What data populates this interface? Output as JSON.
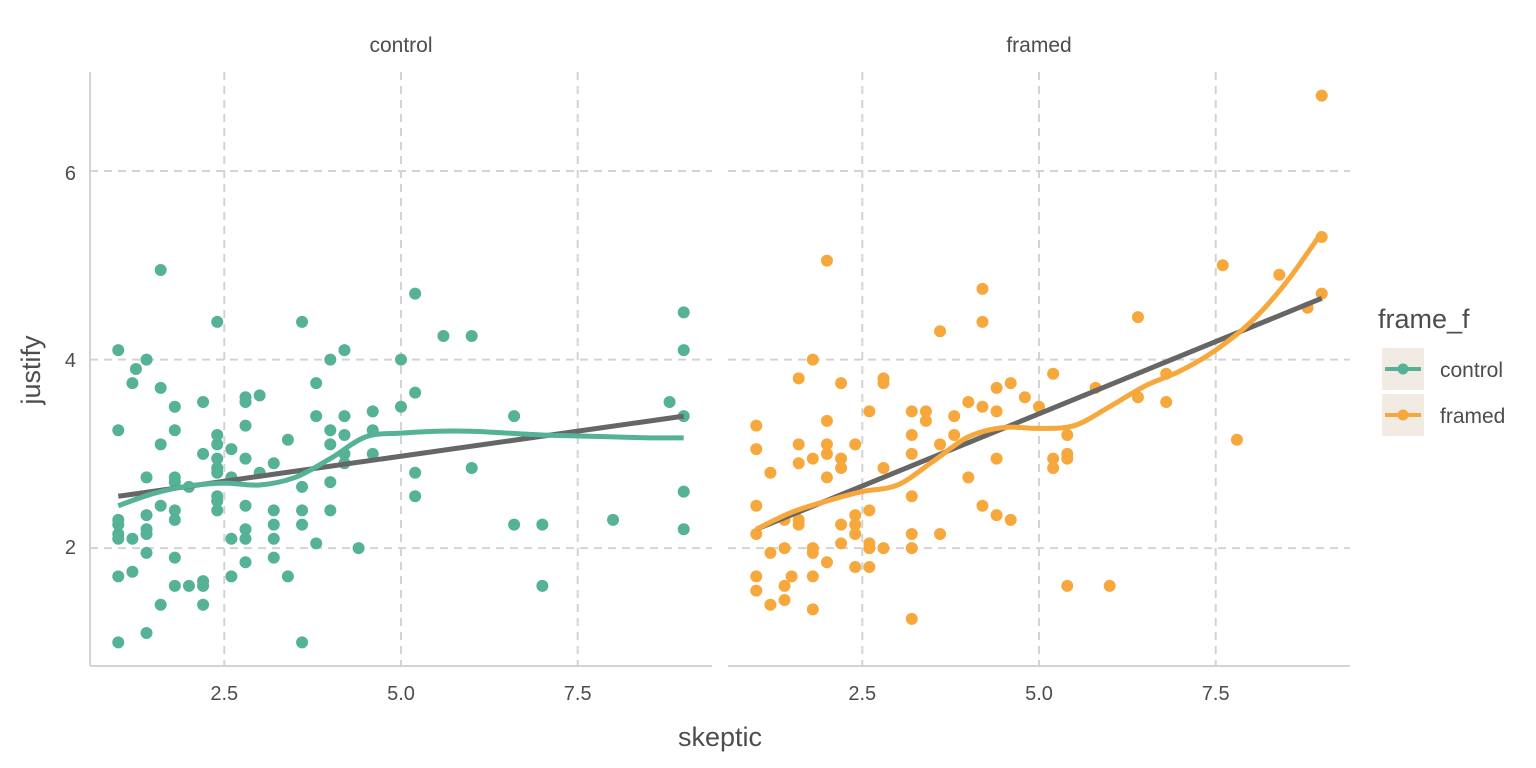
{
  "chart_data": {
    "type": "scatter",
    "xlabel": "skeptic",
    "ylabel": "justify",
    "xlim": [
      0.6,
      9.4
    ],
    "ylim": [
      0.75,
      7.05
    ],
    "x_ticks": [
      2.5,
      5.0,
      7.5
    ],
    "x_tick_labels": [
      "2.5",
      "5.0",
      "7.5"
    ],
    "y_ticks": [
      2,
      4,
      6
    ],
    "y_tick_labels": [
      "2",
      "4",
      "6"
    ],
    "grid": true,
    "legend": {
      "title": "frame_f",
      "position": "right",
      "entries": [
        "control",
        "framed"
      ]
    },
    "colors": {
      "control": "#55b297",
      "framed": "#f7a83d",
      "linear_fit": "#666666"
    },
    "panels": [
      {
        "name": "control",
        "points": [
          [
            1,
            4.1
          ],
          [
            1,
            3.25
          ],
          [
            1,
            2.3
          ],
          [
            1,
            2.25
          ],
          [
            1,
            2.15
          ],
          [
            1,
            2.1
          ],
          [
            1,
            1.7
          ],
          [
            1,
            1
          ]
        ],
        "points_more": [
          [
            1.2,
            3.75
          ],
          [
            1.2,
            2.1
          ],
          [
            1.2,
            1.75
          ],
          [
            1.25,
            3.9
          ],
          [
            1.4,
            4
          ],
          [
            1.4,
            2.75
          ],
          [
            1.4,
            2.35
          ],
          [
            1.4,
            2.2
          ],
          [
            1.4,
            2.15
          ],
          [
            1.4,
            1.95
          ],
          [
            1.4,
            1.1
          ],
          [
            1.6,
            4.95
          ],
          [
            1.6,
            3.7
          ],
          [
            1.6,
            3.1
          ],
          [
            1.6,
            2.45
          ],
          [
            1.6,
            1.4
          ],
          [
            1.8,
            3.5
          ],
          [
            1.8,
            3.25
          ],
          [
            1.8,
            2.75
          ],
          [
            1.8,
            2.7
          ],
          [
            1.8,
            2.4
          ],
          [
            1.8,
            2.3
          ],
          [
            1.8,
            1.9
          ],
          [
            1.8,
            1.6
          ],
          [
            2,
            2.65
          ],
          [
            2,
            1.6
          ],
          [
            2.2,
            3.55
          ],
          [
            2.2,
            3
          ],
          [
            2.2,
            1.65
          ],
          [
            2.2,
            1.6
          ],
          [
            2.2,
            1.4
          ],
          [
            2.4,
            4.4
          ],
          [
            2.4,
            3.2
          ],
          [
            2.4,
            3.1
          ],
          [
            2.4,
            2.95
          ],
          [
            2.4,
            2.85
          ],
          [
            2.4,
            2.8
          ],
          [
            2.4,
            2.55
          ],
          [
            2.4,
            2.5
          ],
          [
            2.4,
            2.4
          ],
          [
            2.6,
            3.05
          ],
          [
            2.6,
            2.75
          ],
          [
            2.6,
            2.1
          ],
          [
            2.6,
            1.7
          ],
          [
            2.8,
            3.6
          ],
          [
            2.8,
            3.55
          ],
          [
            2.8,
            3.3
          ],
          [
            2.8,
            2.95
          ],
          [
            2.8,
            2.45
          ],
          [
            2.8,
            2.2
          ],
          [
            2.8,
            2.1
          ],
          [
            2.8,
            1.85
          ],
          [
            3,
            3.62
          ],
          [
            3,
            2.8
          ],
          [
            3.2,
            2.9
          ],
          [
            3.2,
            2.4
          ],
          [
            3.2,
            2.25
          ],
          [
            3.2,
            2.1
          ],
          [
            3.2,
            1.9
          ],
          [
            3.4,
            3.15
          ],
          [
            3.4,
            1.7
          ],
          [
            3.6,
            4.4
          ],
          [
            3.6,
            2.65
          ],
          [
            3.6,
            2.4
          ],
          [
            3.6,
            2.25
          ],
          [
            3.6,
            1
          ],
          [
            3.8,
            3.75
          ],
          [
            3.8,
            3.4
          ],
          [
            3.8,
            2.05
          ],
          [
            4,
            4
          ],
          [
            4,
            3.25
          ],
          [
            4,
            3.1
          ],
          [
            4,
            2.7
          ],
          [
            4,
            2.4
          ],
          [
            4.2,
            4.1
          ],
          [
            4.2,
            3.4
          ],
          [
            4.2,
            3.2
          ],
          [
            4.2,
            3
          ],
          [
            4.2,
            2.9
          ],
          [
            4.4,
            2
          ],
          [
            4.6,
            3.45
          ],
          [
            4.6,
            3.25
          ],
          [
            4.6,
            3
          ],
          [
            5,
            4
          ],
          [
            5,
            3.5
          ],
          [
            5.2,
            4.7
          ],
          [
            5.2,
            3.65
          ],
          [
            5.2,
            2.8
          ],
          [
            5.2,
            2.55
          ],
          [
            5.6,
            4.25
          ],
          [
            6,
            4.25
          ],
          [
            6,
            2.85
          ],
          [
            6.6,
            3.4
          ],
          [
            6.6,
            2.25
          ],
          [
            7,
            2.25
          ],
          [
            7,
            1.6
          ],
          [
            8,
            2.3
          ],
          [
            8.8,
            3.55
          ],
          [
            9,
            4.5
          ],
          [
            9,
            4.1
          ],
          [
            9,
            3.4
          ],
          [
            9,
            2.6
          ],
          [
            9,
            2.2
          ]
        ],
        "linear_fit": [
          [
            1,
            2.55
          ],
          [
            9,
            3.4
          ]
        ],
        "smooth": [
          [
            1,
            2.45
          ],
          [
            1.5,
            2.58
          ],
          [
            2,
            2.66
          ],
          [
            2.5,
            2.69
          ],
          [
            3,
            2.67
          ],
          [
            3.5,
            2.75
          ],
          [
            4,
            2.95
          ],
          [
            4.5,
            3.18
          ],
          [
            5,
            3.22
          ],
          [
            5.5,
            3.24
          ],
          [
            6,
            3.24
          ],
          [
            6.5,
            3.22
          ],
          [
            7,
            3.2
          ],
          [
            7.5,
            3.19
          ],
          [
            8,
            3.18
          ],
          [
            8.5,
            3.17
          ],
          [
            9,
            3.17
          ]
        ]
      },
      {
        "name": "framed",
        "points": [
          [
            1,
            3.3
          ],
          [
            1,
            3.05
          ],
          [
            1,
            2.45
          ],
          [
            1,
            2.15
          ],
          [
            1,
            1.7
          ],
          [
            1,
            1.55
          ]
        ],
        "points_more": [
          [
            1.2,
            2.8
          ],
          [
            1.2,
            1.95
          ],
          [
            1.2,
            1.4
          ],
          [
            1.4,
            2.3
          ],
          [
            1.4,
            2
          ],
          [
            1.4,
            1.6
          ],
          [
            1.4,
            1.45
          ],
          [
            1.5,
            1.7
          ],
          [
            1.6,
            3.8
          ],
          [
            1.6,
            3.1
          ],
          [
            1.6,
            2.9
          ],
          [
            1.6,
            2.3
          ],
          [
            1.6,
            2.25
          ],
          [
            1.8,
            4
          ],
          [
            1.8,
            2.95
          ],
          [
            1.8,
            2
          ],
          [
            1.8,
            1.95
          ],
          [
            1.8,
            1.7
          ],
          [
            1.8,
            1.35
          ],
          [
            2,
            5.05
          ],
          [
            2,
            3.35
          ],
          [
            2,
            3.1
          ],
          [
            2,
            3
          ],
          [
            2,
            2.75
          ],
          [
            2,
            1.85
          ],
          [
            2.2,
            3.75
          ],
          [
            2.2,
            2.95
          ],
          [
            2.2,
            2.85
          ],
          [
            2.2,
            2.25
          ],
          [
            2.2,
            2.05
          ],
          [
            2.4,
            3.1
          ],
          [
            2.4,
            2.35
          ],
          [
            2.4,
            2.25
          ],
          [
            2.4,
            2.15
          ],
          [
            2.4,
            1.8
          ],
          [
            2.6,
            3.45
          ],
          [
            2.6,
            2.4
          ],
          [
            2.6,
            2.05
          ],
          [
            2.6,
            2
          ],
          [
            2.6,
            1.8
          ],
          [
            2.8,
            3.8
          ],
          [
            2.8,
            3.75
          ],
          [
            2.8,
            2.85
          ],
          [
            2.8,
            2
          ],
          [
            3.2,
            3.45
          ],
          [
            3.2,
            3.2
          ],
          [
            3.2,
            3
          ],
          [
            3.2,
            2.55
          ],
          [
            3.2,
            2.15
          ],
          [
            3.2,
            2
          ],
          [
            3.2,
            1.25
          ],
          [
            3.4,
            3.45
          ],
          [
            3.4,
            3.35
          ],
          [
            3.6,
            4.3
          ],
          [
            3.6,
            3.1
          ],
          [
            3.6,
            2.15
          ],
          [
            3.8,
            3.4
          ],
          [
            3.8,
            3.2
          ],
          [
            4,
            3.55
          ],
          [
            4,
            2.75
          ],
          [
            4.2,
            4.75
          ],
          [
            4.2,
            4.4
          ],
          [
            4.2,
            3.5
          ],
          [
            4.2,
            2.45
          ],
          [
            4.4,
            3.7
          ],
          [
            4.4,
            3.45
          ],
          [
            4.4,
            2.95
          ],
          [
            4.4,
            2.35
          ],
          [
            4.6,
            3.75
          ],
          [
            4.6,
            2.3
          ],
          [
            4.8,
            3.6
          ],
          [
            5,
            3.5
          ],
          [
            5.2,
            3.85
          ],
          [
            5.2,
            2.95
          ],
          [
            5.2,
            2.85
          ],
          [
            5.4,
            3.2
          ],
          [
            5.4,
            3
          ],
          [
            5.4,
            2.95
          ],
          [
            5.4,
            1.6
          ],
          [
            5.8,
            3.7
          ],
          [
            6,
            1.6
          ],
          [
            6.4,
            4.45
          ],
          [
            6.4,
            3.6
          ],
          [
            6.8,
            3.85
          ],
          [
            6.8,
            3.55
          ],
          [
            7.6,
            5
          ],
          [
            7.8,
            3.15
          ],
          [
            8.4,
            4.9
          ],
          [
            8.8,
            4.55
          ],
          [
            9,
            6.8
          ],
          [
            9,
            5.3
          ],
          [
            9,
            4.7
          ]
        ],
        "linear_fit": [
          [
            1,
            2.2
          ],
          [
            9,
            4.65
          ]
        ],
        "smooth": [
          [
            1,
            2.2
          ],
          [
            1.5,
            2.38
          ],
          [
            2,
            2.5
          ],
          [
            2.5,
            2.6
          ],
          [
            3,
            2.67
          ],
          [
            3.5,
            2.92
          ],
          [
            4,
            3.18
          ],
          [
            4.5,
            3.28
          ],
          [
            5,
            3.27
          ],
          [
            5.5,
            3.3
          ],
          [
            6,
            3.5
          ],
          [
            6.5,
            3.72
          ],
          [
            7,
            3.88
          ],
          [
            7.5,
            4.1
          ],
          [
            8,
            4.4
          ],
          [
            8.5,
            4.82
          ],
          [
            9,
            5.35
          ]
        ]
      }
    ]
  }
}
